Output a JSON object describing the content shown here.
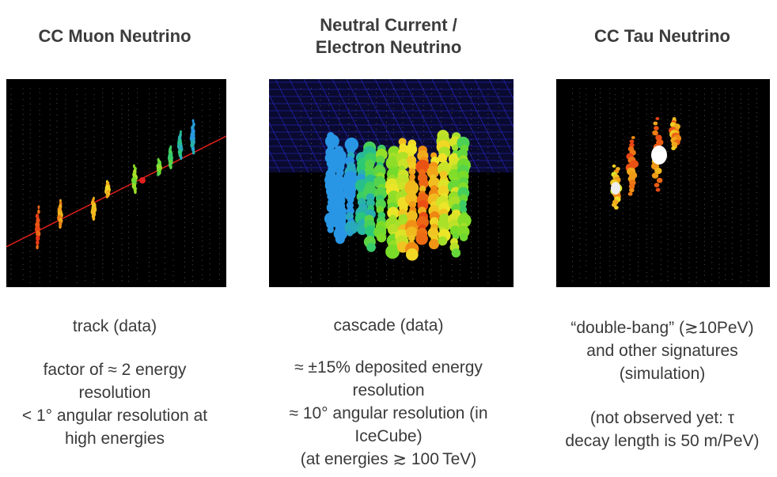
{
  "columns": [
    {
      "title_lines": [
        "CC Muon Neutrino"
      ],
      "caption": "track (data)",
      "details": [
        "factor of ≈ 2 energy",
        "resolution",
        "< 1° angular resolution at",
        "high energies"
      ]
    },
    {
      "title_lines": [
        "Neutral Current /",
        "Electron Neutrino"
      ],
      "caption": "cascade (data)",
      "details": [
        "≈ ±15% deposited energy",
        "resolution",
        "≈ 10° angular resolution (in",
        "IceCube)",
        "(at energies ≳ 100 TeV)"
      ]
    },
    {
      "title_lines": [
        "CC Tau Neutrino"
      ],
      "caption_lines": [
        "“double-bang” (≳10PeV)",
        "and other signatures",
        "(simulation)"
      ],
      "details": [
        "(not observed yet: τ",
        "decay length is 50 m/PeV)"
      ]
    }
  ],
  "colors": {
    "text": "#3a3a3a",
    "panel_bg": "#000000",
    "grid": "#2a2ad8",
    "track": "#e0201a"
  }
}
